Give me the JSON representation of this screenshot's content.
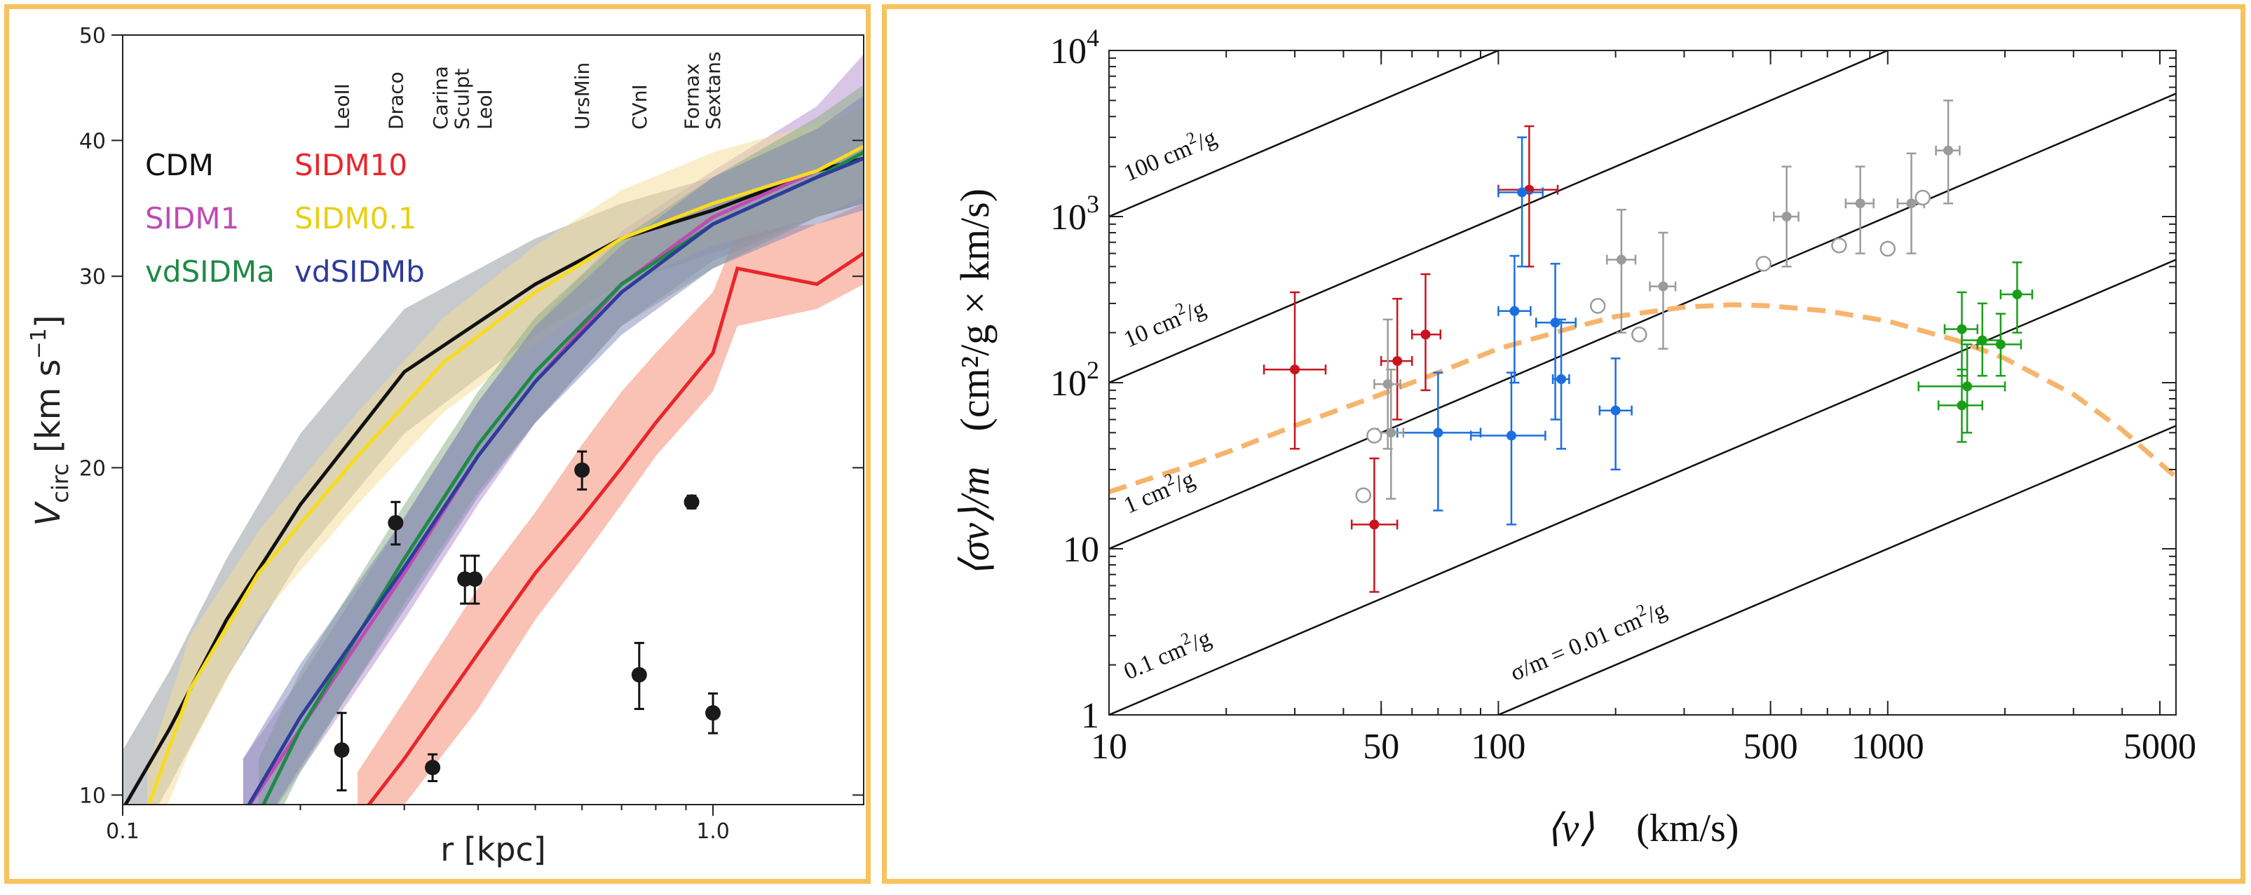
{
  "chart_data": [
    {
      "type": "line",
      "xlabel": "r [kpc]",
      "ylabel_main": "V",
      "ylabel_sub": "circ",
      "ylabel_unit": " [km s",
      "ylabel_exp": "−1",
      "ylabel_close": "]",
      "xscale": "log",
      "yscale": "log",
      "xlim": [
        0.1,
        1.8
      ],
      "ylim": [
        9.8,
        50
      ],
      "xticks": [
        {
          "v": 0.1,
          "label": "0.1"
        },
        {
          "v": 1.0,
          "label": "1.0"
        }
      ],
      "yticks": [
        {
          "v": 10,
          "label": "10"
        },
        {
          "v": 20,
          "label": "20"
        },
        {
          "v": 30,
          "label": "30"
        },
        {
          "v": 40,
          "label": "40"
        },
        {
          "v": 50,
          "label": "50"
        }
      ],
      "galaxies": [
        {
          "name": "LeoII",
          "x": 0.235
        },
        {
          "name": "Draco",
          "x": 0.29
        },
        {
          "name": "Carina",
          "x": 0.345
        },
        {
          "name": "Sculpt",
          "x": 0.375
        },
        {
          "name": "LeoI",
          "x": 0.41
        },
        {
          "name": "UrsMin",
          "x": 0.6
        },
        {
          "name": "CVnI",
          "x": 0.75
        },
        {
          "name": "Fornax",
          "x": 0.92
        },
        {
          "name": "Sextans",
          "x": 1.0
        }
      ],
      "series": [
        {
          "name": "CDM",
          "color": "#111111",
          "band": "#8f9699",
          "x": [
            0.1,
            0.12,
            0.15,
            0.2,
            0.3,
            0.5,
            0.7,
            1.0,
            1.5,
            1.8
          ],
          "y": [
            9.7,
            11.5,
            14.5,
            18.5,
            24.5,
            29.5,
            32.5,
            34.5,
            37.5,
            38.5
          ],
          "lo": [
            8.6,
            10.2,
            12.8,
            16.5,
            21.5,
            26.5,
            29.5,
            31.5,
            34.0,
            35.0
          ],
          "hi": [
            11.0,
            13.0,
            16.5,
            21.5,
            28.0,
            32.5,
            35.0,
            37.0,
            41.0,
            43.0
          ]
        },
        {
          "name": "SIDM1",
          "color": "#bf4bb3",
          "band": "#b48ccc",
          "x": [
            0.16,
            0.2,
            0.3,
            0.4,
            0.5,
            0.7,
            1.0,
            1.5,
            1.8
          ],
          "y": [
            9.6,
            11.5,
            16.0,
            20.5,
            24.0,
            29.5,
            34.0,
            37.5,
            39.5
          ],
          "lo": [
            8.8,
            10.5,
            14.5,
            18.5,
            22.0,
            27.0,
            31.0,
            34.0,
            35.0
          ],
          "hi": [
            10.8,
            12.8,
            18.0,
            23.0,
            27.0,
            33.0,
            37.5,
            43.0,
            48.0
          ]
        },
        {
          "name": "SIDM10",
          "color": "#e8262b",
          "band": "#f4866a",
          "x": [
            0.25,
            0.3,
            0.4,
            0.5,
            0.6,
            0.7,
            0.8,
            1.0,
            1.1,
            1.5,
            1.8
          ],
          "y": [
            9.5,
            10.8,
            13.5,
            16.0,
            18.0,
            20.0,
            22.0,
            25.5,
            30.5,
            29.5,
            31.5
          ],
          "lo": [
            8.6,
            9.8,
            12.0,
            14.5,
            16.5,
            18.5,
            20.5,
            23.5,
            27.0,
            28.0,
            29.5
          ],
          "hi": [
            10.5,
            12.2,
            15.5,
            18.2,
            21.0,
            23.5,
            25.5,
            29.0,
            33.0,
            33.5,
            35.0
          ]
        },
        {
          "name": "SIDM0.1",
          "color": "#f7dc1e",
          "band": "#f5de96",
          "x": [
            0.11,
            0.13,
            0.17,
            0.25,
            0.35,
            0.5,
            0.7,
            1.0,
            1.5,
            1.8
          ],
          "y": [
            9.7,
            12.5,
            16.0,
            20.5,
            25.0,
            29.0,
            32.5,
            35.0,
            37.5,
            39.5
          ],
          "lo": [
            8.8,
            11.0,
            14.5,
            18.5,
            22.5,
            26.0,
            29.5,
            32.0,
            34.0,
            35.5
          ],
          "hi": [
            10.6,
            14.0,
            17.5,
            22.5,
            27.5,
            32.0,
            36.0,
            39.0,
            41.5,
            43.0
          ]
        },
        {
          "name": "vdSIDMa",
          "color": "#1e8a45",
          "band": "#86ad84",
          "x": [
            0.17,
            0.2,
            0.3,
            0.4,
            0.5,
            0.7,
            1.0,
            1.5,
            1.8
          ],
          "y": [
            9.6,
            11.5,
            16.5,
            21.0,
            24.5,
            29.5,
            33.5,
            37.0,
            39.0
          ],
          "lo": [
            8.8,
            10.5,
            15.0,
            19.0,
            22.0,
            27.0,
            30.5,
            34.0,
            35.0
          ],
          "hi": [
            10.8,
            13.0,
            18.5,
            23.5,
            27.5,
            32.5,
            37.0,
            42.0,
            45.0
          ]
        },
        {
          "name": "vdSIDMb",
          "color": "#2d3c9a",
          "band": "#7f86b8",
          "x": [
            0.16,
            0.2,
            0.3,
            0.4,
            0.5,
            0.7,
            1.0,
            1.5,
            1.8
          ],
          "y": [
            9.6,
            11.8,
            16.2,
            20.5,
            24.0,
            29.0,
            33.5,
            37.0,
            38.5
          ],
          "lo": [
            8.8,
            10.6,
            14.8,
            18.8,
            22.0,
            26.5,
            30.5,
            33.5,
            34.5
          ],
          "hi": [
            10.8,
            13.2,
            18.0,
            23.0,
            27.0,
            32.0,
            37.0,
            41.0,
            44.0
          ]
        }
      ],
      "legend": [
        {
          "name": "CDM",
          "color": "#111111",
          "col": 0,
          "row": 0
        },
        {
          "name": "SIDM10",
          "color": "#e8262b",
          "col": 1,
          "row": 0
        },
        {
          "name": "SIDM1",
          "color": "#bf4bb3",
          "col": 0,
          "row": 1
        },
        {
          "name": "SIDM0.1",
          "color": "#e8cf10",
          "col": 1,
          "row": 1
        },
        {
          "name": "vdSIDMa",
          "color": "#1e8a45",
          "col": 0,
          "row": 2
        },
        {
          "name": "vdSIDMb",
          "color": "#2d3c9a",
          "col": 1,
          "row": 2
        }
      ],
      "points": [
        {
          "x": 0.235,
          "y": 11.0,
          "lo": 10.1,
          "hi": 11.9
        },
        {
          "x": 0.29,
          "y": 17.8,
          "lo": 17.0,
          "hi": 18.6
        },
        {
          "x": 0.335,
          "y": 10.6,
          "lo": 10.3,
          "hi": 10.9
        },
        {
          "x": 0.38,
          "y": 15.8,
          "lo": 15.0,
          "hi": 16.6
        },
        {
          "x": 0.395,
          "y": 15.8,
          "lo": 15.0,
          "hi": 16.6
        },
        {
          "x": 0.6,
          "y": 19.9,
          "lo": 19.1,
          "hi": 20.7
        },
        {
          "x": 0.75,
          "y": 12.9,
          "lo": 12.0,
          "hi": 13.8
        },
        {
          "x": 0.92,
          "y": 18.6,
          "lo": 18.35,
          "hi": 18.85
        },
        {
          "x": 1.0,
          "y": 11.9,
          "lo": 11.4,
          "hi": 12.4
        }
      ]
    },
    {
      "type": "scatter",
      "xlabel_sym": "⟨v⟩",
      "xlabel_unit": "(km/s)",
      "ylabel_sym": "⟨σv⟩/m",
      "ylabel_unit": "(cm²/g × km/s)",
      "xscale": "log",
      "yscale": "log",
      "xlim": [
        10,
        5500
      ],
      "ylim": [
        1,
        10000
      ],
      "xticks": [
        {
          "v": 10,
          "label": "10"
        },
        {
          "v": 50,
          "label": "50"
        },
        {
          "v": 100,
          "label": "100"
        },
        {
          "v": 500,
          "label": "500"
        },
        {
          "v": 1000,
          "label": "1000"
        },
        {
          "v": 5000,
          "label": "5000"
        }
      ],
      "yticks": [
        {
          "v": 1,
          "base": "1",
          "exp": ""
        },
        {
          "v": 10,
          "base": "10",
          "exp": ""
        },
        {
          "v": 100,
          "base": "10",
          "exp": "2"
        },
        {
          "v": 1000,
          "base": "10",
          "exp": "3"
        },
        {
          "v": 10000,
          "base": "10",
          "exp": "4"
        }
      ],
      "cross_section_lines": [
        {
          "sigma_over_m": 100,
          "label": "100 cm",
          "label_exp": "2",
          "label_end": "/g"
        },
        {
          "sigma_over_m": 10,
          "label": "10 cm",
          "label_exp": "2",
          "label_end": "/g"
        },
        {
          "sigma_over_m": 1,
          "label": "1 cm",
          "label_exp": "2",
          "label_end": "/g"
        },
        {
          "sigma_over_m": 0.1,
          "label": "0.1 cm",
          "label_exp": "2",
          "label_end": "/g"
        },
        {
          "sigma_over_m": 0.01,
          "label": "σ/m = 0.01 cm",
          "label_exp": "2",
          "label_end": "/g"
        }
      ],
      "fit_curve": {
        "color": "#f6b46c",
        "x": [
          10,
          15,
          20,
          30,
          50,
          70,
          100,
          150,
          200,
          300,
          400,
          500,
          700,
          1000,
          1500,
          2000,
          3000,
          4000,
          5500
        ],
        "y": [
          22,
          30,
          38,
          55,
          85,
          115,
          160,
          210,
          250,
          285,
          295,
          290,
          270,
          235,
          180,
          140,
          85,
          52,
          27
        ]
      },
      "groups": [
        {
          "name": "dwarfs",
          "color": "#c8141e",
          "filled": true,
          "points": [
            {
              "x": 30,
              "y": 120,
              "xlo": 25,
              "xhi": 36,
              "ylo": 40,
              "yhi": 350
            },
            {
              "x": 48,
              "y": 14,
              "xlo": 42,
              "xhi": 55,
              "ylo": 5.5,
              "yhi": 35
            },
            {
              "x": 55,
              "y": 135,
              "xlo": 50,
              "xhi": 60,
              "ylo": 60,
              "yhi": 320
            },
            {
              "x": 65,
              "y": 195,
              "xlo": 60,
              "xhi": 71,
              "ylo": 90,
              "yhi": 450
            },
            {
              "x": 120,
              "y": 1450,
              "xlo": 100,
              "xhi": 142,
              "ylo": 500,
              "yhi": 3500
            }
          ]
        },
        {
          "name": "lsb",
          "color": "#1a6fe0",
          "filled": true,
          "points": [
            {
              "x": 70,
              "y": 50,
              "xlo": 55,
              "xhi": 90,
              "ylo": 17,
              "yhi": 115
            },
            {
              "x": 108,
              "y": 48,
              "xlo": 85,
              "xhi": 132,
              "ylo": 14,
              "yhi": 115
            },
            {
              "x": 110,
              "y": 270,
              "xlo": 100,
              "xhi": 121,
              "ylo": 100,
              "yhi": 580
            },
            {
              "x": 115,
              "y": 1400,
              "xlo": 100,
              "xhi": 130,
              "ylo": 500,
              "yhi": 3000
            },
            {
              "x": 140,
              "y": 230,
              "xlo": 125,
              "xhi": 158,
              "ylo": 60,
              "yhi": 520
            },
            {
              "x": 145,
              "y": 105,
              "xlo": 138,
              "xhi": 152,
              "ylo": 40,
              "yhi": 240
            },
            {
              "x": 200,
              "y": 68,
              "xlo": 182,
              "xhi": 220,
              "ylo": 30,
              "yhi": 140
            }
          ]
        },
        {
          "name": "groups_filled",
          "color": "#9b9b9b",
          "filled": true,
          "points": [
            {
              "x": 52,
              "y": 98,
              "xlo": 48,
              "xhi": 56,
              "ylo": 40,
              "yhi": 240
            },
            {
              "x": 53,
              "y": 50,
              "xlo": 49,
              "xhi": 57,
              "ylo": 20,
              "yhi": 120
            },
            {
              "x": 207,
              "y": 550,
              "xlo": 190,
              "xhi": 225,
              "ylo": 200,
              "yhi": 1100
            },
            {
              "x": 265,
              "y": 380,
              "xlo": 245,
              "xhi": 285,
              "ylo": 160,
              "yhi": 800
            },
            {
              "x": 550,
              "y": 1000,
              "xlo": 510,
              "xhi": 590,
              "ylo": 500,
              "yhi": 2000
            },
            {
              "x": 850,
              "y": 1200,
              "xlo": 780,
              "xhi": 920,
              "ylo": 600,
              "yhi": 2000
            },
            {
              "x": 1150,
              "y": 1200,
              "xlo": 1060,
              "xhi": 1240,
              "ylo": 600,
              "yhi": 2400
            },
            {
              "x": 1430,
              "y": 2500,
              "xlo": 1330,
              "xhi": 1530,
              "ylo": 1200,
              "yhi": 5000
            }
          ]
        },
        {
          "name": "groups_open",
          "color": "#9b9b9b",
          "filled": false,
          "points": [
            {
              "x": 45,
              "y": 21
            },
            {
              "x": 48,
              "y": 48
            },
            {
              "x": 180,
              "y": 290
            },
            {
              "x": 230,
              "y": 195
            },
            {
              "x": 480,
              "y": 520
            },
            {
              "x": 750,
              "y": 670
            },
            {
              "x": 1000,
              "y": 640
            },
            {
              "x": 1230,
              "y": 1300
            }
          ]
        },
        {
          "name": "clusters",
          "color": "#1a9e1a",
          "filled": true,
          "points": [
            {
              "x": 1550,
              "y": 210,
              "xlo": 1400,
              "xhi": 1700,
              "ylo": 110,
              "yhi": 350
            },
            {
              "x": 1600,
              "y": 95,
              "xlo": 1200,
              "xhi": 2000,
              "ylo": 50,
              "yhi": 170
            },
            {
              "x": 1550,
              "y": 73,
              "xlo": 1350,
              "xhi": 1750,
              "ylo": 44,
              "yhi": 120
            },
            {
              "x": 1750,
              "y": 180,
              "xlo": 1550,
              "xhi": 1950,
              "ylo": 110,
              "yhi": 300
            },
            {
              "x": 1950,
              "y": 170,
              "xlo": 1700,
              "xhi": 2200,
              "ylo": 110,
              "yhi": 260
            },
            {
              "x": 2150,
              "y": 340,
              "xlo": 1950,
              "xhi": 2350,
              "ylo": 200,
              "yhi": 530
            }
          ]
        }
      ]
    }
  ]
}
